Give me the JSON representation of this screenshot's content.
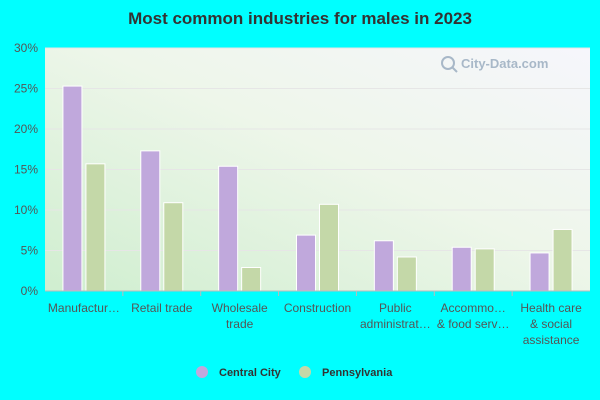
{
  "chart_data": {
    "type": "bar",
    "title": "Most common industries for males in 2023",
    "categories": [
      [
        "Manufactur…"
      ],
      [
        "Retail trade"
      ],
      [
        "Wholesale",
        "trade"
      ],
      [
        "Construction"
      ],
      [
        "Public",
        "administrat…"
      ],
      [
        "Accommo…",
        "& food serv…"
      ],
      [
        "Health care",
        "& social",
        "assistance"
      ]
    ],
    "series": [
      {
        "name": "Central City",
        "color": "#c0a8dc",
        "values": [
          25.3,
          17.3,
          15.4,
          6.9,
          6.2,
          5.4,
          4.7
        ]
      },
      {
        "name": "Pennsylvania",
        "color": "#c4d8a8",
        "values": [
          15.7,
          10.9,
          2.9,
          10.7,
          4.2,
          5.2,
          7.6
        ]
      }
    ],
    "ylim": [
      0,
      30
    ],
    "yticks": [
      0,
      5,
      10,
      15,
      20,
      25,
      30
    ],
    "ytick_labels": [
      "0%",
      "5%",
      "10%",
      "15%",
      "20%",
      "25%",
      "30%"
    ],
    "xlabel": "",
    "ylabel": "",
    "grid": true,
    "legend_position": "bottom-center",
    "watermark": "City-Data.com"
  }
}
